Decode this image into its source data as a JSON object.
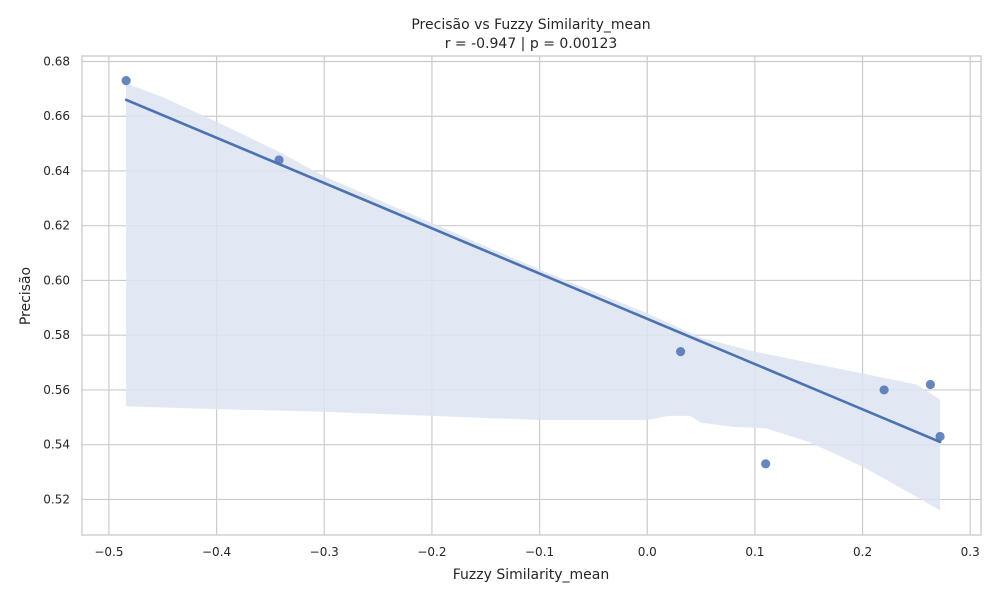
{
  "chart_data": {
    "type": "scatter",
    "title": "Precisão vs Fuzzy Similarity_mean",
    "subtitle": "r = -0.947  |  p = 0.00123",
    "xlabel": "Fuzzy Similarity_mean",
    "ylabel": "Precisão",
    "xlim": [
      -0.525,
      0.31
    ],
    "ylim": [
      0.507,
      0.682
    ],
    "xticks": [
      -0.5,
      -0.4,
      -0.3,
      -0.2,
      -0.1,
      0.0,
      0.1,
      0.2,
      0.3
    ],
    "xtick_labels": [
      "−0.5",
      "−0.4",
      "−0.3",
      "−0.2",
      "−0.1",
      "0.0",
      "0.1",
      "0.2",
      "0.3"
    ],
    "yticks": [
      0.52,
      0.54,
      0.56,
      0.58,
      0.6,
      0.62,
      0.64,
      0.66,
      0.68
    ],
    "ytick_labels": [
      "0.52",
      "0.54",
      "0.56",
      "0.58",
      "0.60",
      "0.62",
      "0.64",
      "0.66",
      "0.68"
    ],
    "grid": true,
    "points": [
      {
        "x": -0.484,
        "y": 0.673
      },
      {
        "x": -0.342,
        "y": 0.644
      },
      {
        "x": 0.031,
        "y": 0.574
      },
      {
        "x": 0.11,
        "y": 0.533
      },
      {
        "x": 0.22,
        "y": 0.56
      },
      {
        "x": 0.263,
        "y": 0.562
      },
      {
        "x": 0.272,
        "y": 0.543
      }
    ],
    "regression_line": [
      {
        "x": -0.484,
        "y": 0.666
      },
      {
        "x": 0.272,
        "y": 0.541
      }
    ],
    "confidence_band": {
      "upper": [
        {
          "x": -0.484,
          "y": 0.672
        },
        {
          "x": -0.45,
          "y": 0.667
        },
        {
          "x": -0.4,
          "y": 0.658
        },
        {
          "x": -0.342,
          "y": 0.647
        },
        {
          "x": -0.3,
          "y": 0.638
        },
        {
          "x": -0.2,
          "y": 0.621
        },
        {
          "x": -0.1,
          "y": 0.604
        },
        {
          "x": 0.0,
          "y": 0.588
        },
        {
          "x": 0.05,
          "y": 0.579
        },
        {
          "x": 0.1,
          "y": 0.574
        },
        {
          "x": 0.15,
          "y": 0.57
        },
        {
          "x": 0.2,
          "y": 0.566
        },
        {
          "x": 0.25,
          "y": 0.562
        },
        {
          "x": 0.272,
          "y": 0.5565
        }
      ],
      "lower": [
        {
          "x": 0.272,
          "y": 0.516
        },
        {
          "x": 0.25,
          "y": 0.521
        },
        {
          "x": 0.2,
          "y": 0.532
        },
        {
          "x": 0.15,
          "y": 0.541
        },
        {
          "x": 0.11,
          "y": 0.546
        },
        {
          "x": 0.08,
          "y": 0.5465
        },
        {
          "x": 0.05,
          "y": 0.548
        },
        {
          "x": 0.04,
          "y": 0.5505
        },
        {
          "x": 0.02,
          "y": 0.5505
        },
        {
          "x": 0.0,
          "y": 0.549
        },
        {
          "x": -0.1,
          "y": 0.549
        },
        {
          "x": -0.2,
          "y": 0.5505
        },
        {
          "x": -0.3,
          "y": 0.552
        },
        {
          "x": -0.4,
          "y": 0.553
        },
        {
          "x": -0.484,
          "y": 0.554
        }
      ]
    },
    "colors": {
      "point": "#4c72b0",
      "line": "#4c72b0",
      "band": "#dde4f1",
      "grid": "#cccccc",
      "frame": "#cccccc"
    }
  }
}
